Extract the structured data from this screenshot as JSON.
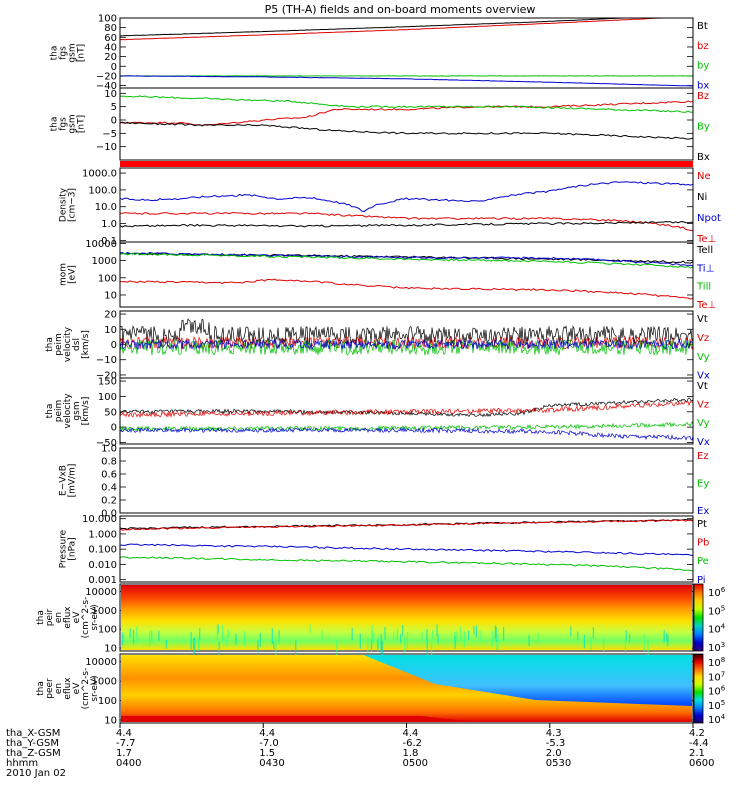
{
  "title": "P5 (TH-A) fields and on-board moments overview",
  "footer": {
    "row_labels": [
      "tha_X-GSM",
      "tha_Y-GSM",
      "tha_Z-GSM",
      "hhmm",
      "2010 Jan 02"
    ],
    "columns": [
      [
        "4.4",
        "-7.7",
        "1.7",
        "0400"
      ],
      [
        "4.4",
        "-7.0",
        "1.5",
        "0430"
      ],
      [
        "4.4",
        "-6.2",
        "1.8",
        "0500"
      ],
      [
        "4.3",
        "-5.3",
        "2.0",
        "0530"
      ],
      [
        "4.2",
        "-4.4",
        "2.1",
        "0600"
      ]
    ]
  },
  "colorbars": [
    {
      "ticks": [
        "10^6",
        "10^5",
        "10^4",
        "10^3"
      ],
      "colors": [
        "#e00000",
        "#ff7000",
        "#ffd000",
        "#c8ff00",
        "#00e000",
        "#00d0c0",
        "#0080ff",
        "#0000d0",
        "#300070"
      ]
    },
    {
      "ticks": [
        "10^8",
        "10^7",
        "10^6",
        "10^5",
        "10^4"
      ],
      "colors": [
        "#300000",
        "#e00000",
        "#ff7000",
        "#ffe000",
        "#c8ff00",
        "#00e000",
        "#00e0e0",
        "#0080ff",
        "#0000d0",
        "#200060"
      ]
    }
  ],
  "chart_data": [
    {
      "type": "line",
      "ylabel": [
        "tha",
        "fgs",
        "gsm",
        "[nT]"
      ],
      "ylim": [
        -45,
        100
      ],
      "ticks": [
        "100",
        "80",
        "60",
        "40",
        "20",
        "0",
        "−20",
        "−40"
      ],
      "tickvals": [
        100,
        80,
        60,
        40,
        20,
        0,
        -20,
        -40
      ],
      "series": [
        {
          "name": "Bt",
          "color": "#000000",
          "x": [
            4.0,
            4.5,
            5.0,
            5.5,
            5.75,
            6.0
          ],
          "y": [
            63,
            72,
            82,
            93,
            100,
            106
          ]
        },
        {
          "name": "bz",
          "color": "#e00000",
          "x": [
            4.0,
            4.5,
            5.0,
            5.5,
            5.75,
            6.0
          ],
          "y": [
            55,
            65,
            76,
            89,
            96,
            103
          ]
        },
        {
          "name": "by",
          "color": "#00c000",
          "x": [
            4.0,
            6.0
          ],
          "y": [
            -20,
            -20
          ]
        },
        {
          "name": "bx",
          "color": "#0000d0",
          "x": [
            4.0,
            4.5,
            5.0,
            5.5,
            6.0
          ],
          "y": [
            -20,
            -22,
            -26,
            -33,
            -41
          ]
        }
      ]
    },
    {
      "type": "line",
      "ylabel": [
        "tha",
        "fgs",
        "gsm",
        "[nT]"
      ],
      "ylim": [
        -15,
        12
      ],
      "ticks": [
        "10",
        "5",
        "0",
        "−5",
        "−10"
      ],
      "tickvals": [
        10,
        5,
        0,
        -5,
        -10
      ],
      "series": [
        {
          "name": "Bz",
          "color": "#e00000",
          "x": [
            4.0,
            4.2,
            4.3,
            4.5,
            4.65,
            4.75,
            5.0,
            5.25,
            5.5,
            5.75,
            6.0
          ],
          "y": [
            -1,
            -1,
            -2,
            0,
            1,
            4,
            4,
            5,
            5,
            6,
            7
          ]
        },
        {
          "name": "By",
          "color": "#00c000",
          "x": [
            4.0,
            4.3,
            4.6,
            4.8,
            5.0,
            5.4,
            5.7,
            6.0
          ],
          "y": [
            9,
            8,
            7,
            5,
            5,
            5,
            4,
            3
          ]
        },
        {
          "name": "Bx",
          "color": "#000000",
          "x": [
            4.0,
            4.3,
            4.5,
            4.75,
            5.0,
            5.5,
            5.75,
            6.0
          ],
          "y": [
            -1,
            -2,
            -2,
            -4,
            -5,
            -5,
            -6,
            -7
          ]
        }
      ]
    },
    {
      "type": "line",
      "ylabel": [
        "Density",
        "[cm−3]"
      ],
      "ylim": [
        0.08,
        2000
      ],
      "log": true,
      "ticks": [
        "1000.0",
        "100.0",
        "10.0",
        "1.0",
        "0.1"
      ],
      "tickvals": [
        1000,
        100,
        10,
        1,
        0.1
      ],
      "series": [
        {
          "name": "Ne",
          "color": "#e00000",
          "x": [
            4.0,
            4.5,
            4.65,
            4.8,
            5.0,
            5.25,
            5.5,
            5.75,
            6.0
          ],
          "y": [
            4,
            4,
            4,
            3,
            2,
            2,
            2,
            1.5,
            0.4
          ]
        },
        {
          "name": "Ni",
          "color": "#000000",
          "x": [
            4.0,
            4.3,
            4.65,
            5.0,
            5.5,
            6.0
          ],
          "y": [
            0.7,
            0.8,
            0.7,
            0.8,
            1,
            1.2
          ]
        },
        {
          "name": "Npot",
          "color": "#0000d0",
          "x": [
            4.0,
            4.1,
            4.2,
            4.3,
            4.45,
            4.55,
            4.65,
            4.75,
            4.85,
            5.0,
            5.25,
            5.5,
            5.75,
            6.0
          ],
          "y": [
            30,
            25,
            30,
            40,
            50,
            30,
            35,
            20,
            5,
            30,
            20,
            80,
            300,
            200
          ]
        },
        {
          "name": "Te⊥",
          "color": "#e00000",
          "x": [],
          "y": []
        }
      ]
    },
    {
      "type": "line",
      "ylabel": [
        "mom",
        "[eV]"
      ],
      "ylim": [
        2,
        12000
      ],
      "log": true,
      "ticks": [
        "10000",
        "1000",
        "100",
        "10",
        "1"
      ],
      "tickvals": [
        10000,
        1000,
        100,
        10,
        1
      ],
      "series": [
        {
          "name": "Tell",
          "color": "#000000",
          "x": [
            4.0,
            6.0
          ],
          "y": [
            2500,
            800
          ]
        },
        {
          "name": "Ti⊥",
          "color": "#0000d0",
          "x": [
            4.0,
            4.5,
            5.0,
            5.5,
            6.0
          ],
          "y": [
            2800,
            2000,
            1500,
            1400,
            500
          ]
        },
        {
          "name": "Till",
          "color": "#00c000",
          "x": [
            4.0,
            4.5,
            5.0,
            5.5,
            6.0
          ],
          "y": [
            2500,
            1800,
            1200,
            900,
            400
          ]
        },
        {
          "name": "Te⊥",
          "color": "#e00000",
          "x": [
            4.0,
            4.4,
            4.55,
            4.8,
            5.0,
            5.5,
            6.0
          ],
          "y": [
            60,
            50,
            80,
            40,
            25,
            20,
            6
          ]
        }
      ]
    },
    {
      "type": "line",
      "ylabel": [
        "tha",
        "peim",
        "velocity",
        "dsl",
        "[km/s]"
      ],
      "ylim": [
        -22,
        22
      ],
      "ticks": [
        "20",
        "10",
        "0",
        "−10",
        "−20"
      ],
      "tickvals": [
        20,
        10,
        0,
        -10,
        -20
      ],
      "series": [
        {
          "name": "Vt",
          "color": "#000000",
          "x": [
            4.0,
            6.0
          ],
          "y": [
            6,
            6
          ]
        },
        {
          "name": "Vz",
          "color": "#e00000",
          "x": [
            4.0,
            6.0
          ],
          "y": [
            1,
            1
          ]
        },
        {
          "name": "Vy",
          "color": "#00c000",
          "x": [
            4.0,
            6.0
          ],
          "y": [
            -2,
            -2
          ]
        },
        {
          "name": "Vx",
          "color": "#0000d0",
          "x": [
            4.0,
            6.0
          ],
          "y": [
            0,
            0
          ]
        }
      ]
    },
    {
      "type": "line",
      "ylabel": [
        "tha",
        "peim",
        "velocity",
        "gsm",
        "[km/s]"
      ],
      "ylim": [
        -55,
        160
      ],
      "ticks": [
        "150",
        "100",
        "50",
        "0",
        "−50"
      ],
      "tickvals": [
        150,
        100,
        50,
        0,
        -50
      ],
      "series": [
        {
          "name": "Vt",
          "color": "#000000",
          "x": [
            4.0,
            4.5,
            5.0,
            5.25,
            5.4,
            5.5,
            5.75,
            6.0
          ],
          "y": [
            50,
            52,
            45,
            40,
            45,
            70,
            80,
            90
          ]
        },
        {
          "name": "Vz",
          "color": "#e00000",
          "x": [
            4.0,
            5.5,
            6.0
          ],
          "y": [
            40,
            55,
            80
          ]
        },
        {
          "name": "Vy",
          "color": "#00c000",
          "x": [
            4.0,
            5.0,
            5.5,
            5.75,
            6.0
          ],
          "y": [
            -5,
            -3,
            0,
            5,
            10
          ]
        },
        {
          "name": "Vx",
          "color": "#0000d0",
          "x": [
            4.0,
            5.0,
            5.5,
            5.75,
            6.0
          ],
          "y": [
            -10,
            -10,
            -15,
            -30,
            -35
          ]
        }
      ]
    },
    {
      "type": "line",
      "ylabel": [
        "E−VxB",
        "[mV/m]"
      ],
      "ylim": [
        0,
        1
      ],
      "ticks": [
        "1.0",
        "0.8",
        "0.6",
        "0.4",
        "0.2",
        "0.0"
      ],
      "tickvals": [
        1,
        0.8,
        0.6,
        0.4,
        0.2,
        0
      ],
      "series": [
        {
          "name": "Ez",
          "color": "#e00000",
          "x": [],
          "y": []
        },
        {
          "name": "Ey",
          "color": "#00c000",
          "x": [],
          "y": []
        },
        {
          "name": "Ex",
          "color": "#0000d0",
          "x": [],
          "y": []
        }
      ]
    },
    {
      "type": "line",
      "ylabel": [
        "Pressure",
        "[nPa]"
      ],
      "ylim": [
        0.0007,
        15
      ],
      "log": true,
      "ticks": [
        "10.000",
        "1.000",
        "0.100",
        "0.010",
        "0.001"
      ],
      "tickvals": [
        10,
        1,
        0.1,
        0.01,
        0.001
      ],
      "series": [
        {
          "name": "Pt",
          "color": "#000000",
          "x": [
            4.0,
            5.0,
            6.0
          ],
          "y": [
            2.2,
            4,
            8
          ]
        },
        {
          "name": "Pb",
          "color": "#e00000",
          "x": [
            4.0,
            5.0,
            6.0
          ],
          "y": [
            2,
            3.8,
            7.8
          ]
        },
        {
          "name": "Pe",
          "color": "#00c000",
          "x": [
            4.0,
            4.5,
            5.0,
            5.5,
            6.0
          ],
          "y": [
            0.03,
            0.02,
            0.015,
            0.01,
            0.004
          ]
        },
        {
          "name": "Pi",
          "color": "#0000d0",
          "x": [
            4.0,
            4.5,
            5.0,
            5.5,
            6.0
          ],
          "y": [
            0.2,
            0.15,
            0.1,
            0.07,
            0.04
          ]
        }
      ]
    },
    {
      "type": "heatmap",
      "ylabel": [
        "tha",
        "peir",
        "en",
        "eflux",
        "eV",
        "(cm^2-s-",
        "sr-eV)"
      ],
      "ticks": [
        "10000",
        "1000",
        "100",
        "10"
      ],
      "tickvals": [
        10000,
        1000,
        100,
        10
      ],
      "log": true,
      "ylim": [
        7,
        25000
      ]
    },
    {
      "type": "heatmap",
      "ylabel": [
        "tha",
        "peer",
        "en",
        "eflux",
        "eV",
        "(cm^2-s-",
        "sr-eV)"
      ],
      "ticks": [
        "10000",
        "1000",
        "100",
        "10"
      ],
      "tickvals": [
        10000,
        1000,
        100,
        10
      ],
      "log": true,
      "ylim": [
        7,
        25000
      ]
    }
  ]
}
